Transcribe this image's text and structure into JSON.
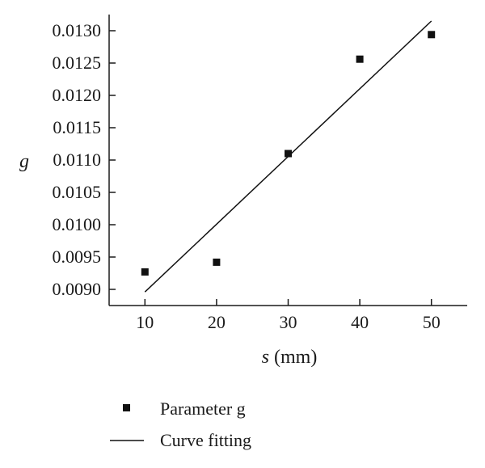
{
  "chart_data": {
    "type": "scatter",
    "xlabel_symbol": "s",
    "xlabel_unit": " (mm)",
    "ylabel": "g",
    "xlim": [
      5,
      55
    ],
    "ylim": [
      0.00875,
      0.01325
    ],
    "x_ticks": [
      10,
      20,
      30,
      40,
      50
    ],
    "x_tick_labels": [
      "10",
      "20",
      "30",
      "40",
      "50"
    ],
    "y_ticks": [
      0.009,
      0.0095,
      0.01,
      0.0105,
      0.011,
      0.0115,
      0.012,
      0.0125,
      0.013
    ],
    "y_tick_labels": [
      "0.0090",
      "0.0095",
      "0.0100",
      "0.0105",
      "0.0110",
      "0.0115",
      "0.0120",
      "0.0125",
      "0.0130"
    ],
    "grid": false,
    "legend_position": "bottom",
    "series": [
      {
        "name": "Parameter g",
        "type": "scatter",
        "marker": "square",
        "x": [
          10,
          20,
          30,
          40,
          50
        ],
        "y": [
          0.00927,
          0.00942,
          0.0111,
          0.01256,
          0.01294
        ]
      },
      {
        "name": "Curve fitting",
        "type": "line",
        "x": [
          10,
          50
        ],
        "y": [
          0.00896,
          0.01315
        ]
      }
    ],
    "colors": {
      "marker": "#111111",
      "line": "#111111",
      "axis": "#1a1a1a"
    }
  }
}
